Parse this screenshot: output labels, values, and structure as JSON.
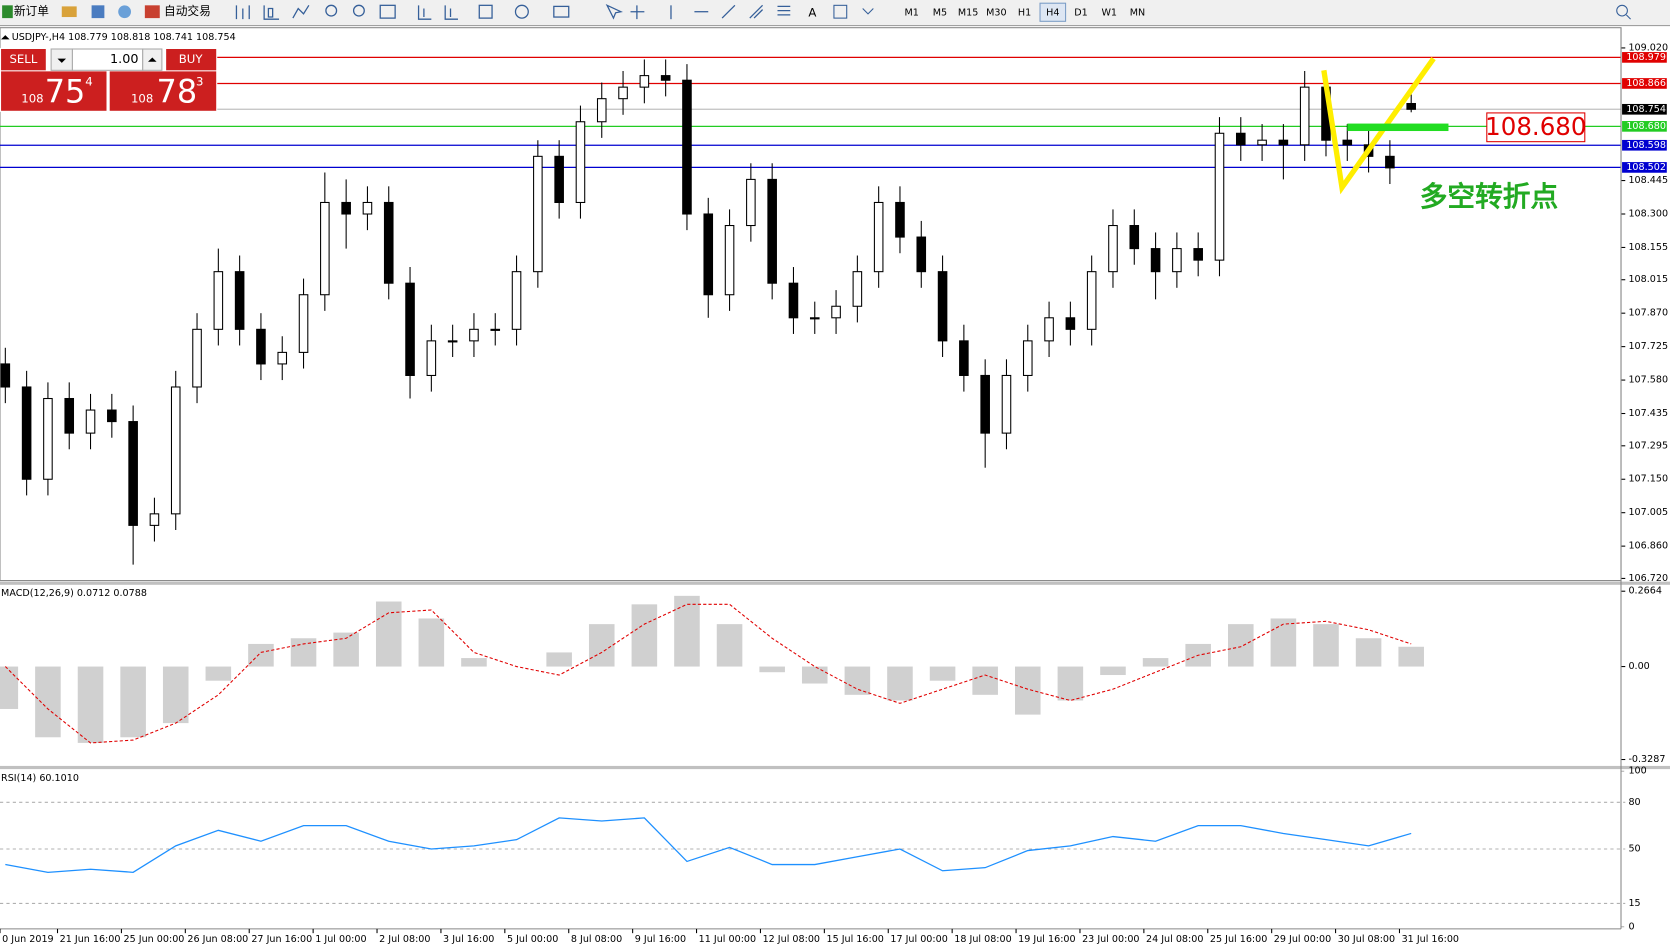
{
  "toolbar": {
    "new_order": "新订单",
    "auto_trading": "自动交易",
    "timeframes": [
      "M1",
      "M5",
      "M15",
      "M30",
      "H1",
      "H4",
      "D1",
      "W1",
      "MN"
    ],
    "active_timeframe": 5
  },
  "trade_panel": {
    "sell": "SELL",
    "buy": "BUY",
    "lot": "1.00",
    "sell_big": "108",
    "sell_pips": "75",
    "sell_frac": "4",
    "buy_big": "108",
    "buy_pips": "78",
    "buy_frac": "3"
  },
  "chart_data": {
    "type": "candlestick",
    "title": "USDJPY-,H4  108.779 108.818 108.741 108.754",
    "ylim": [
      106.72,
      109.02
    ],
    "yticks": [
      {
        "value": 109.02,
        "label": "109.020"
      },
      {
        "value": 108.445,
        "label": "108.445"
      },
      {
        "value": 108.3,
        "label": "108.300"
      },
      {
        "value": 108.155,
        "label": "108.155"
      },
      {
        "value": 108.015,
        "label": "108.015"
      },
      {
        "value": 107.87,
        "label": "107.870"
      },
      {
        "value": 107.725,
        "label": "107.725"
      },
      {
        "value": 107.58,
        "label": "107.580"
      },
      {
        "value": 107.435,
        "label": "107.435"
      },
      {
        "value": 107.295,
        "label": "107.295"
      },
      {
        "value": 107.15,
        "label": "107.150"
      },
      {
        "value": 107.005,
        "label": "107.005"
      },
      {
        "value": 106.86,
        "label": "106.860"
      },
      {
        "value": 106.72,
        "label": "106.720"
      }
    ],
    "levels": [
      {
        "value": 108.979,
        "label": "108.979",
        "color": "#e00000"
      },
      {
        "value": 108.866,
        "label": "108.866",
        "color": "#e00000"
      },
      {
        "value": 108.754,
        "label": "108.754",
        "color": "#000000"
      },
      {
        "value": 108.68,
        "label": "108.680",
        "color": "#22cc22"
      },
      {
        "value": 108.598,
        "label": "108.598",
        "color": "#0000d0"
      },
      {
        "value": 108.502,
        "label": "108.502",
        "color": "#0000d0"
      }
    ],
    "candles": {
      "open": [
        107.65,
        107.55,
        107.15,
        107.5,
        107.35,
        107.45,
        107.4,
        106.95,
        107.0,
        107.55,
        107.8,
        108.05,
        107.8,
        107.65,
        107.7,
        107.95,
        108.35,
        108.3,
        108.35,
        108.0,
        107.6,
        107.75,
        107.75,
        107.8,
        107.8,
        108.05,
        108.55,
        108.35,
        108.7,
        108.8,
        108.85,
        108.9,
        108.88,
        108.3,
        107.95,
        108.25,
        108.45,
        108.0,
        107.85,
        107.85,
        107.9,
        108.05,
        108.35,
        108.2,
        108.05,
        107.75,
        107.6,
        107.35,
        107.6,
        107.75,
        107.85,
        107.8,
        108.05,
        108.25,
        108.15,
        108.05,
        108.15,
        108.1,
        108.65,
        108.6,
        108.62,
        108.6,
        108.85,
        108.62,
        108.6,
        108.55,
        108.779
      ],
      "high": [
        107.72,
        107.62,
        107.57,
        107.57,
        107.52,
        107.52,
        107.47,
        107.07,
        107.62,
        107.87,
        108.15,
        108.12,
        107.87,
        107.77,
        108.02,
        108.48,
        108.45,
        108.42,
        108.42,
        108.07,
        107.82,
        107.82,
        107.87,
        107.87,
        108.12,
        108.62,
        108.62,
        108.77,
        108.87,
        108.92,
        108.97,
        108.97,
        108.95,
        108.37,
        108.32,
        108.52,
        108.52,
        108.07,
        107.92,
        107.97,
        108.12,
        108.42,
        108.42,
        108.27,
        108.12,
        107.82,
        107.67,
        107.67,
        107.82,
        107.92,
        107.92,
        108.12,
        108.32,
        108.32,
        108.22,
        108.22,
        108.22,
        108.72,
        108.72,
        108.69,
        108.69,
        108.92,
        108.92,
        108.69,
        108.67,
        108.62,
        108.818
      ],
      "low": [
        107.48,
        107.08,
        107.08,
        107.28,
        107.28,
        107.33,
        106.78,
        106.88,
        106.93,
        107.48,
        107.73,
        107.73,
        107.58,
        107.58,
        107.63,
        107.88,
        108.15,
        108.23,
        107.93,
        107.5,
        107.53,
        107.68,
        107.68,
        107.73,
        107.73,
        107.98,
        108.28,
        108.28,
        108.63,
        108.73,
        108.78,
        108.81,
        108.23,
        107.85,
        107.88,
        108.18,
        107.93,
        107.78,
        107.78,
        107.78,
        107.83,
        107.98,
        108.13,
        107.98,
        107.68,
        107.53,
        107.2,
        107.28,
        107.53,
        107.68,
        107.73,
        107.73,
        107.98,
        108.08,
        107.93,
        107.98,
        108.03,
        108.03,
        108.53,
        108.53,
        108.45,
        108.53,
        108.55,
        108.53,
        108.48,
        108.43,
        108.741
      ],
      "close": [
        107.55,
        107.15,
        107.5,
        107.35,
        107.45,
        107.4,
        106.95,
        107.0,
        107.55,
        107.8,
        108.05,
        107.8,
        107.65,
        107.7,
        107.95,
        108.35,
        108.3,
        108.35,
        108.0,
        107.6,
        107.75,
        107.75,
        107.8,
        107.8,
        108.05,
        108.55,
        108.35,
        108.7,
        108.8,
        108.85,
        108.9,
        108.88,
        108.3,
        107.95,
        108.25,
        108.45,
        108.0,
        107.85,
        107.85,
        107.9,
        108.05,
        108.35,
        108.2,
        108.05,
        107.75,
        107.6,
        107.35,
        107.6,
        107.75,
        107.85,
        107.8,
        108.05,
        108.25,
        108.15,
        108.05,
        108.15,
        108.1,
        108.65,
        108.6,
        108.62,
        108.6,
        108.85,
        108.62,
        108.6,
        108.55,
        108.5,
        108.754
      ]
    },
    "time_labels": [
      "0 Jun 2019",
      "21 Jun 16:00",
      "25 Jun 00:00",
      "26 Jun 08:00",
      "27 Jun 16:00",
      "1 Jul 00:00",
      "2 Jul 08:00",
      "3 Jul 16:00",
      "5 Jul 00:00",
      "8 Jul 08:00",
      "9 Jul 16:00",
      "11 Jul 00:00",
      "12 Jul 08:00",
      "15 Jul 16:00",
      "17 Jul 00:00",
      "18 Jul 08:00",
      "19 Jul 16:00",
      "23 Jul 00:00",
      "24 Jul 08:00",
      "25 Jul 16:00",
      "29 Jul 00:00",
      "30 Jul 08:00",
      "31 Jul 16:00"
    ],
    "annotation": "多空转折点",
    "macd": {
      "title": "MACD(12,26,9) 0.0712 0.0788",
      "ylim": [
        -0.3287,
        0.2664
      ],
      "yticks": [
        0.2664,
        {
          "value": 0,
          "label": "0.00"
        },
        -0.3287
      ],
      "histogram": [
        -0.15,
        -0.25,
        -0.27,
        -0.25,
        -0.2,
        -0.05,
        0.08,
        0.1,
        0.12,
        0.23,
        0.17,
        0.03,
        0.0,
        0.05,
        0.15,
        0.22,
        0.25,
        0.15,
        -0.02,
        -0.06,
        -0.1,
        -0.12,
        -0.05,
        -0.1,
        -0.17,
        -0.12,
        -0.03,
        0.03,
        0.08,
        0.15,
        0.17,
        0.15,
        0.1,
        0.07
      ],
      "signal": [
        0.0,
        -0.15,
        -0.27,
        -0.26,
        -0.2,
        -0.1,
        0.05,
        0.08,
        0.1,
        0.19,
        0.2,
        0.05,
        0.0,
        -0.03,
        0.05,
        0.15,
        0.22,
        0.22,
        0.1,
        0.0,
        -0.08,
        -0.13,
        -0.08,
        -0.03,
        -0.08,
        -0.12,
        -0.08,
        -0.02,
        0.04,
        0.07,
        0.15,
        0.16,
        0.13,
        0.08
      ]
    },
    "rsi": {
      "title": "RSI(14) 60.1010",
      "ylim": [
        0,
        100
      ],
      "yticks": [
        100,
        80,
        50,
        15,
        0
      ],
      "values": [
        40,
        35,
        37,
        35,
        52,
        62,
        55,
        65,
        65,
        55,
        50,
        52,
        56,
        70,
        68,
        70,
        42,
        51,
        40,
        40,
        45,
        50,
        36,
        38,
        49,
        52,
        58,
        55,
        65,
        65,
        60,
        56,
        52,
        60
      ]
    }
  }
}
